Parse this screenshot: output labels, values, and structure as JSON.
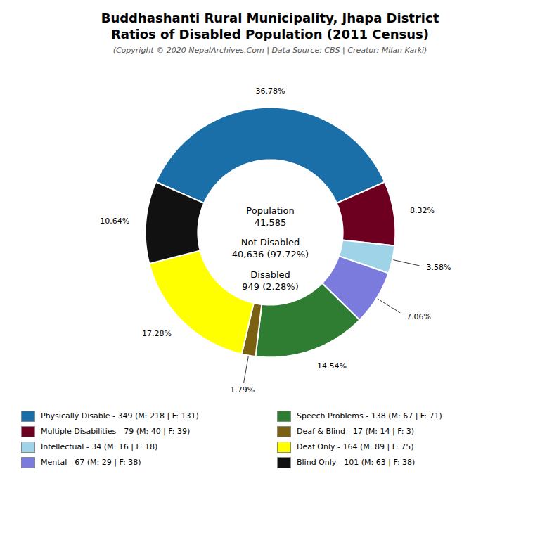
{
  "chart_data": {
    "type": "donut",
    "title": "Buddhashanti Rural Municipality, Jhapa District\nRatios of Disabled Population (2011 Census)",
    "subtitle": "(Copyright © 2020 NepalArchives.Com | Data Source: CBS | Creator: Milan Karki)",
    "categories": [
      "Physically Disable - 349 (M: 218 | F: 131)",
      "Multiple Disabilities - 79 (M: 40 | F: 39)",
      "Intellectual - 34 (M: 16 | F: 18)",
      "Mental - 67 (M: 29 | F: 38)",
      "Speech Problems - 138 (M: 67 | F: 71)",
      "Deaf & Blind - 17 (M: 14 | F: 3)",
      "Deaf Only - 164 (M: 89 | F: 75)",
      "Blind Only - 101 (M: 63 | F: 38)"
    ],
    "values": [
      36.78,
      8.32,
      3.58,
      7.06,
      14.54,
      1.79,
      17.28,
      10.64
    ],
    "value_labels": [
      "36.78%",
      "8.32%",
      "3.58%",
      "7.06%",
      "14.54%",
      "1.79%",
      "17.28%",
      "10.64%"
    ],
    "colors": [
      "#1a6fa8",
      "#6d0020",
      "#9fd4e8",
      "#7b7bdd",
      "#2E7D32",
      "#7a6010",
      "#ffff00",
      "#111111"
    ],
    "data_labels": true,
    "legend": "bottom",
    "annotations": [
      "Population\n41,585",
      "Not Disabled\n40,636 (97.72%)",
      "Disabled\n949 (2.28%)"
    ]
  }
}
